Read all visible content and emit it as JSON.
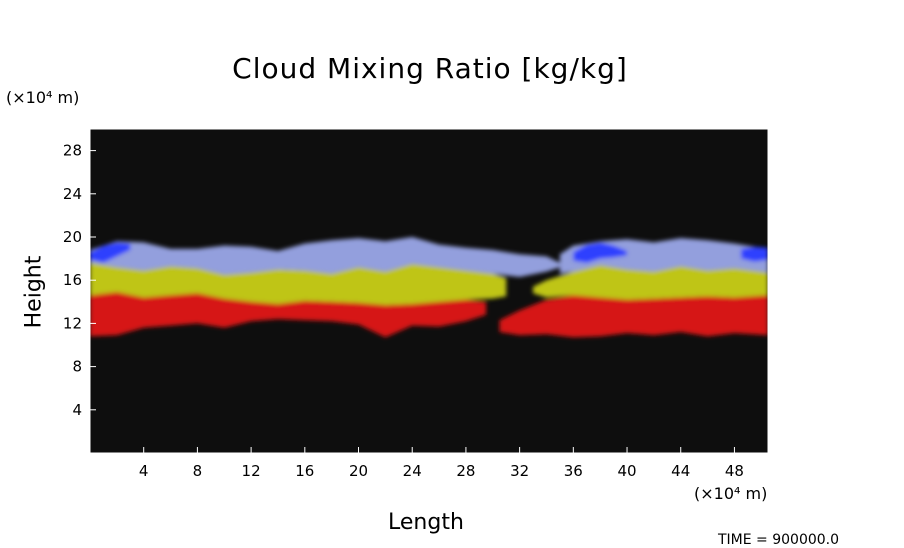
{
  "chart_data": {
    "type": "heatmap",
    "title": "Cloud Mixing Ratio [kg/kg]",
    "xlabel": "Length",
    "ylabel": "Height",
    "x_unit": "(×10⁴ m)",
    "y_unit": "(×10⁴ m)",
    "xlim": [
      0,
      50.5
    ],
    "ylim": [
      0,
      30
    ],
    "x_ticks": [
      4,
      8,
      12,
      16,
      20,
      24,
      28,
      32,
      36,
      40,
      44,
      48
    ],
    "y_ticks": [
      4,
      8,
      12,
      16,
      20,
      24,
      28
    ],
    "grid": false,
    "background_color": "#0e0e0e",
    "bands": [
      {
        "color": "#e01515",
        "x": [
          0,
          2,
          4,
          6,
          8,
          10,
          12,
          14,
          16,
          18,
          20,
          22,
          24,
          26,
          28,
          29.5
        ],
        "top": [
          14.6,
          14.9,
          14.4,
          14.6,
          14.8,
          14.3,
          14.0,
          13.8,
          14.1,
          14.0,
          13.9,
          13.7,
          13.8,
          14.0,
          14.2,
          14.0
        ],
        "bottom": [
          10.8,
          10.9,
          11.6,
          11.8,
          12.0,
          11.6,
          12.2,
          12.4,
          12.3,
          12.2,
          11.9,
          10.7,
          11.8,
          11.7,
          12.2,
          12.8
        ]
      },
      {
        "color": "#e01515",
        "x": [
          30.5,
          32,
          34,
          36,
          38,
          40,
          42,
          44,
          46,
          48,
          50.5
        ],
        "top": [
          12.3,
          13.2,
          14.2,
          14.6,
          14.4,
          14.2,
          14.3,
          14.4,
          14.5,
          14.4,
          14.6
        ],
        "bottom": [
          11.2,
          10.9,
          11.0,
          10.7,
          10.8,
          11.1,
          10.9,
          11.2,
          10.8,
          11.1,
          10.9
        ]
      },
      {
        "color": "#c8cf18",
        "x": [
          0,
          2,
          4,
          6,
          8,
          10,
          12,
          14,
          16,
          18,
          20,
          22,
          24,
          26,
          28,
          30,
          31
        ],
        "top": [
          17.6,
          17.2,
          16.9,
          17.3,
          17.1,
          16.5,
          16.7,
          17.0,
          16.9,
          16.6,
          17.2,
          16.8,
          17.5,
          17.2,
          16.9,
          16.6,
          16.2
        ],
        "bottom": [
          14.6,
          14.9,
          14.4,
          14.6,
          14.8,
          14.3,
          14.0,
          13.8,
          14.1,
          14.0,
          13.9,
          13.7,
          13.8,
          14.0,
          14.2,
          14.3,
          14.5
        ]
      },
      {
        "color": "#c8cf18",
        "x": [
          33,
          34,
          36,
          38,
          40,
          42,
          44,
          46,
          48,
          50.5
        ],
        "top": [
          15.4,
          16.0,
          16.8,
          17.4,
          17.0,
          16.8,
          17.3,
          16.9,
          17.1,
          16.7
        ],
        "bottom": [
          14.8,
          14.4,
          14.6,
          14.4,
          14.2,
          14.3,
          14.4,
          14.5,
          14.4,
          14.6
        ]
      },
      {
        "color": "#9aa6e8",
        "x": [
          0,
          2,
          4,
          6,
          8,
          10,
          12,
          14,
          16,
          18,
          20,
          22,
          24,
          26,
          28,
          30,
          32,
          34,
          35
        ],
        "top": [
          18.8,
          19.6,
          19.5,
          18.9,
          18.9,
          19.2,
          19.1,
          18.7,
          19.4,
          19.7,
          19.9,
          19.6,
          20.0,
          19.3,
          19.0,
          18.8,
          18.4,
          18.2,
          17.6
        ],
        "bottom": [
          17.6,
          17.2,
          16.9,
          17.3,
          17.1,
          16.5,
          16.7,
          17.0,
          16.9,
          16.6,
          17.2,
          16.8,
          17.5,
          17.2,
          16.9,
          16.6,
          16.3,
          16.8,
          17.2
        ]
      },
      {
        "color": "#9aa6e8",
        "x": [
          35,
          36,
          38,
          40,
          42,
          44,
          46,
          48,
          50.5
        ],
        "top": [
          18.4,
          19.2,
          19.6,
          19.8,
          19.5,
          19.9,
          19.7,
          19.4,
          18.9
        ],
        "bottom": [
          16.6,
          16.8,
          17.4,
          17.0,
          16.8,
          17.3,
          16.9,
          17.1,
          16.7
        ]
      },
      {
        "color": "#2a3cff",
        "x": [
          0,
          1,
          2,
          3
        ],
        "top": [
          18.6,
          19.2,
          19.5,
          19.4
        ],
        "bottom": [
          17.9,
          17.6,
          18.2,
          18.8
        ]
      },
      {
        "color": "#2a3cff",
        "x": [
          36,
          37,
          38,
          39,
          40
        ],
        "top": [
          18.6,
          19.3,
          19.5,
          19.2,
          18.7
        ],
        "bottom": [
          17.8,
          17.6,
          18.0,
          18.1,
          18.3
        ]
      },
      {
        "color": "#2a3cff",
        "x": [
          48.5,
          49.5,
          50.5
        ],
        "top": [
          18.9,
          19.1,
          19.0
        ],
        "bottom": [
          18.0,
          17.7,
          17.9
        ]
      }
    ]
  },
  "time_readout": "TIME = 900000.0"
}
